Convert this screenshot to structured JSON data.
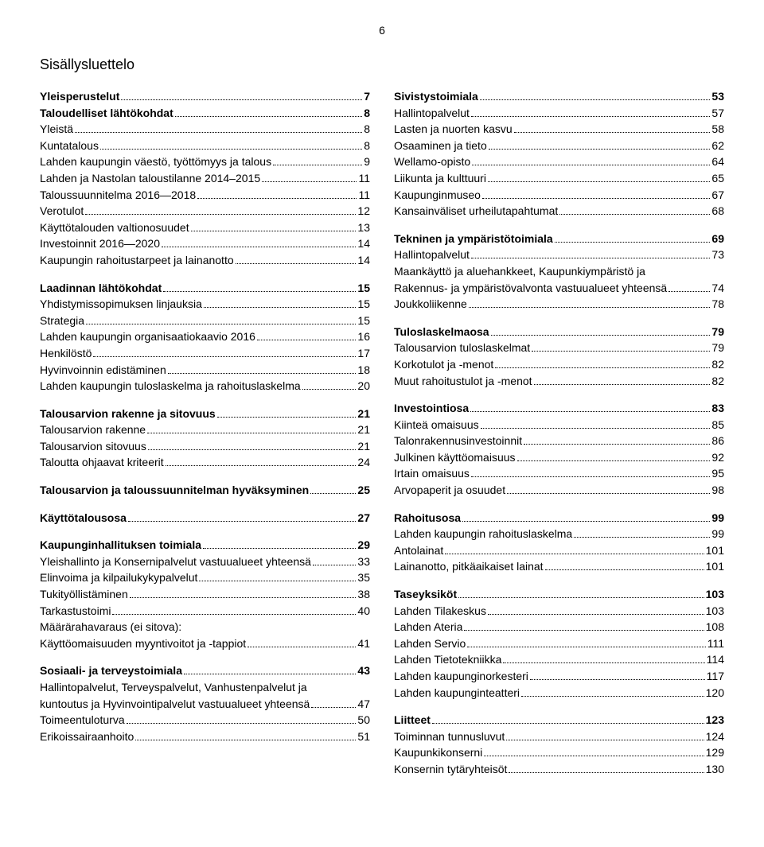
{
  "page_number": "6",
  "title": "Sisällysluettelo",
  "left": [
    {
      "type": "entry",
      "label": "Yleisperustelut",
      "page": "7",
      "bold": true
    },
    {
      "type": "entry",
      "label": "Taloudelliset lähtökohdat",
      "page": "8",
      "bold": true
    },
    {
      "type": "entry",
      "label": "Yleistä",
      "page": "8",
      "bold": false
    },
    {
      "type": "entry",
      "label": "Kuntatalous",
      "page": "8",
      "bold": false
    },
    {
      "type": "entry",
      "label": "Lahden kaupungin väestö, työttömyys ja talous",
      "page": "9",
      "bold": false
    },
    {
      "type": "entry",
      "label": "Lahden ja Nastolan taloustilanne 2014–2015",
      "page": "11",
      "bold": false
    },
    {
      "type": "entry",
      "label": "Taloussuunnitelma 2016—2018",
      "page": "11",
      "bold": false
    },
    {
      "type": "entry",
      "label": "Verotulot",
      "page": "12",
      "bold": false
    },
    {
      "type": "entry",
      "label": "Käyttötalouden valtionosuudet",
      "page": "13",
      "bold": false
    },
    {
      "type": "entry",
      "label": "Investoinnit 2016—2020",
      "page": "14",
      "bold": false
    },
    {
      "type": "entry",
      "label": "Kaupungin rahoitustarpeet ja lainanotto",
      "page": "14",
      "bold": false
    },
    {
      "type": "spacer"
    },
    {
      "type": "entry",
      "label": "Laadinnan lähtökohdat",
      "page": "15",
      "bold": true
    },
    {
      "type": "entry",
      "label": "Yhdistymissopimuksen linjauksia",
      "page": "15",
      "bold": false
    },
    {
      "type": "entry",
      "label": "Strategia",
      "page": "15",
      "bold": false
    },
    {
      "type": "entry",
      "label": "Lahden kaupungin organisaatiokaavio 2016",
      "page": "16",
      "bold": false
    },
    {
      "type": "entry",
      "label": "Henkilöstö",
      "page": "17",
      "bold": false
    },
    {
      "type": "entry",
      "label": "Hyvinvoinnin edistäminen",
      "page": "18",
      "bold": false
    },
    {
      "type": "entry",
      "label": "Lahden kaupungin tuloslaskelma ja rahoituslaskelma",
      "page": "20",
      "bold": false
    },
    {
      "type": "spacer"
    },
    {
      "type": "entry",
      "label": "Talousarvion rakenne ja sitovuus",
      "page": "21",
      "bold": true
    },
    {
      "type": "entry",
      "label": "Talousarvion rakenne",
      "page": "21",
      "bold": false
    },
    {
      "type": "entry",
      "label": "Talousarvion sitovuus",
      "page": "21",
      "bold": false
    },
    {
      "type": "entry",
      "label": "Taloutta ohjaavat kriteerit",
      "page": "24",
      "bold": false
    },
    {
      "type": "spacer"
    },
    {
      "type": "entry",
      "label": "Talousarvion ja taloussuunnitelman hyväksyminen",
      "page": "25",
      "bold": true
    },
    {
      "type": "spacer"
    },
    {
      "type": "entry",
      "label": "Käyttötalousosa",
      "page": "27",
      "bold": true
    },
    {
      "type": "spacer"
    },
    {
      "type": "entry",
      "label": "Kaupunginhallituksen toimiala",
      "page": "29",
      "bold": true
    },
    {
      "type": "entry",
      "label": "Yleishallinto ja Konsernipalvelut vastuualueet yhteensä",
      "page": "33",
      "bold": false
    },
    {
      "type": "entry",
      "label": "Elinvoima ja kilpailukykypalvelut",
      "page": "35",
      "bold": false
    },
    {
      "type": "entry",
      "label": "Tukityöllistäminen",
      "page": "38",
      "bold": false
    },
    {
      "type": "entry",
      "label": "Tarkastustoimi",
      "page": "40",
      "bold": false
    },
    {
      "type": "nopage",
      "label": "Määrärahavaraus (ei sitova):"
    },
    {
      "type": "entry",
      "label": "Käyttöomaisuuden myyntivoitot ja -tappiot",
      "page": "41",
      "bold": false
    },
    {
      "type": "spacer"
    },
    {
      "type": "entry",
      "label": "Sosiaali- ja terveystoimiala",
      "page": "43",
      "bold": true
    },
    {
      "type": "nopage",
      "label": "Hallintopalvelut, Terveyspalvelut, Vanhustenpalvelut ja"
    },
    {
      "type": "entry",
      "label": "kuntoutus ja Hyvinvointipalvelut vastuualueet yhteensä",
      "page": "47",
      "bold": false
    },
    {
      "type": "entry",
      "label": "Toimeentuloturva",
      "page": "50",
      "bold": false
    },
    {
      "type": "entry",
      "label": "Erikoissairaanhoito",
      "page": "51",
      "bold": false
    }
  ],
  "right": [
    {
      "type": "entry",
      "label": "Sivistystoimiala",
      "page": "53",
      "bold": true
    },
    {
      "type": "entry",
      "label": "Hallintopalvelut",
      "page": "57",
      "bold": false
    },
    {
      "type": "entry",
      "label": "Lasten ja nuorten kasvu",
      "page": "58",
      "bold": false
    },
    {
      "type": "entry",
      "label": "Osaaminen ja tieto",
      "page": "62",
      "bold": false
    },
    {
      "type": "entry",
      "label": "Wellamo-opisto",
      "page": "64",
      "bold": false
    },
    {
      "type": "entry",
      "label": "Liikunta ja kulttuuri",
      "page": "65",
      "bold": false
    },
    {
      "type": "entry",
      "label": "Kaupunginmuseo",
      "page": "67",
      "bold": false
    },
    {
      "type": "entry",
      "label": "Kansainväliset urheilutapahtumat",
      "page": "68",
      "bold": false
    },
    {
      "type": "spacer"
    },
    {
      "type": "entry",
      "label": "Tekninen ja ympäristötoimiala",
      "page": "69",
      "bold": true
    },
    {
      "type": "entry",
      "label": "Hallintopalvelut",
      "page": "73",
      "bold": false
    },
    {
      "type": "nopage",
      "label": "Maankäyttö ja aluehankkeet, Kaupunkiympäristö ja"
    },
    {
      "type": "entry",
      "label": "Rakennus- ja ympäristövalvonta vastuualueet yhteensä",
      "page": "74",
      "bold": false
    },
    {
      "type": "entry",
      "label": "Joukkoliikenne",
      "page": "78",
      "bold": false
    },
    {
      "type": "spacer"
    },
    {
      "type": "entry",
      "label": "Tuloslaskelmaosa",
      "page": "79",
      "bold": true
    },
    {
      "type": "entry",
      "label": "Talousarvion tuloslaskelmat",
      "page": "79",
      "bold": false
    },
    {
      "type": "entry",
      "label": "Korkotulot ja -menot",
      "page": "82",
      "bold": false
    },
    {
      "type": "entry",
      "label": "Muut rahoitustulot ja -menot",
      "page": "82",
      "bold": false
    },
    {
      "type": "spacer"
    },
    {
      "type": "entry",
      "label": "Investointiosa",
      "page": "83",
      "bold": true
    },
    {
      "type": "entry",
      "label": "Kiinteä omaisuus",
      "page": "85",
      "bold": false
    },
    {
      "type": "entry",
      "label": "Talonrakennusinvestoinnit",
      "page": "86",
      "bold": false
    },
    {
      "type": "entry",
      "label": "Julkinen käyttöomaisuus",
      "page": "92",
      "bold": false
    },
    {
      "type": "entry",
      "label": "Irtain omaisuus",
      "page": "95",
      "bold": false
    },
    {
      "type": "entry",
      "label": "Arvopaperit ja osuudet",
      "page": "98",
      "bold": false
    },
    {
      "type": "spacer"
    },
    {
      "type": "entry",
      "label": "Rahoitusosa",
      "page": "99",
      "bold": true
    },
    {
      "type": "entry",
      "label": "Lahden kaupungin rahoituslaskelma",
      "page": "99",
      "bold": false
    },
    {
      "type": "entry",
      "label": "Antolainat",
      "page": "101",
      "bold": false
    },
    {
      "type": "entry",
      "label": "Lainanotto, pitkäaikaiset lainat",
      "page": "101",
      "bold": false
    },
    {
      "type": "spacer"
    },
    {
      "type": "entry",
      "label": "Taseyksiköt",
      "page": "103",
      "bold": true
    },
    {
      "type": "entry",
      "label": "Lahden Tilakeskus",
      "page": "103",
      "bold": false
    },
    {
      "type": "entry",
      "label": "Lahden Ateria",
      "page": "108",
      "bold": false
    },
    {
      "type": "entry",
      "label": "Lahden Servio",
      "page": "111",
      "bold": false
    },
    {
      "type": "entry",
      "label": "Lahden Tietotekniikka",
      "page": "114",
      "bold": false
    },
    {
      "type": "entry",
      "label": "Lahden kaupunginorkesteri",
      "page": "117",
      "bold": false
    },
    {
      "type": "entry",
      "label": "Lahden kaupunginteatteri",
      "page": "120",
      "bold": false
    },
    {
      "type": "spacer"
    },
    {
      "type": "entry",
      "label": "Liitteet",
      "page": "123",
      "bold": true
    },
    {
      "type": "entry",
      "label": "Toiminnan tunnusluvut",
      "page": "124",
      "bold": false
    },
    {
      "type": "entry",
      "label": "Kaupunkikonserni",
      "page": "129",
      "bold": false
    },
    {
      "type": "entry",
      "label": "Konsernin tytäryhteisöt",
      "page": "130",
      "bold": false
    }
  ]
}
